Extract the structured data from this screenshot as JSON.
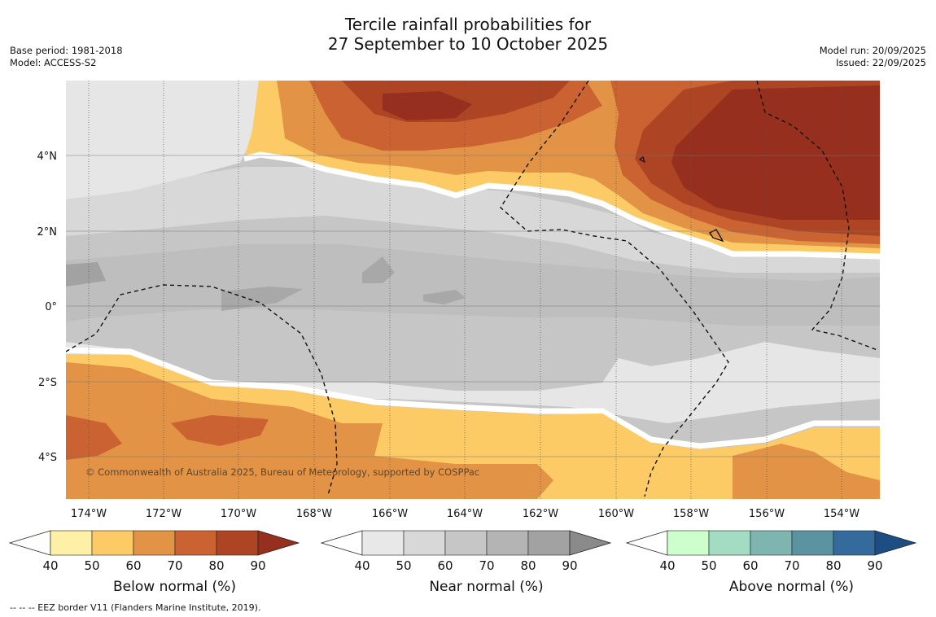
{
  "title_line1": "Tercile rainfall probabilities for",
  "title_line2": "27 September to 10 October 2025",
  "base_period": "Base period: 1981-2018",
  "model": "Model: ACCESS-S2",
  "model_run": "Model run: 20/09/2025",
  "issued": "Issued: 22/09/2025",
  "copyright": "© Commonwealth of Australia 2025, Bureau of Meteorology, supported by COSPPac",
  "footer": "--  --  -- EEZ border V11 (Flanders Marine Institute, 2019).",
  "lat_labels": [
    "4°N",
    "2°N",
    "0°",
    "2°S",
    "4°S"
  ],
  "lon_labels": [
    "174°W",
    "172°W",
    "170°W",
    "168°W",
    "166°W",
    "164°W",
    "162°W",
    "160°W",
    "158°W",
    "156°W",
    "154°W"
  ],
  "colorbars": [
    {
      "label": "Below normal (%)",
      "ticks": [
        "40",
        "50",
        "60",
        "70",
        "80",
        "90"
      ],
      "colors": [
        "#fff0a8",
        "#fdcb66",
        "#e29345",
        "#ca6232",
        "#ad4424"
      ],
      "extend": "#962f1e"
    },
    {
      "label": "Near normal (%)",
      "ticks": [
        "40",
        "50",
        "60",
        "70",
        "80",
        "90"
      ],
      "colors": [
        "#e8e8e8",
        "#d8d8d8",
        "#c6c6c6",
        "#b4b4b4",
        "#a2a2a2"
      ],
      "extend": "#8a8a8a"
    },
    {
      "label": "Above normal (%)",
      "ticks": [
        "40",
        "50",
        "60",
        "70",
        "80",
        "90"
      ],
      "colors": [
        "#ccffcc",
        "#a3dcc2",
        "#7eb5b0",
        "#5b93a0",
        "#346a9c"
      ],
      "extend": "#1e4d84"
    }
  ]
}
